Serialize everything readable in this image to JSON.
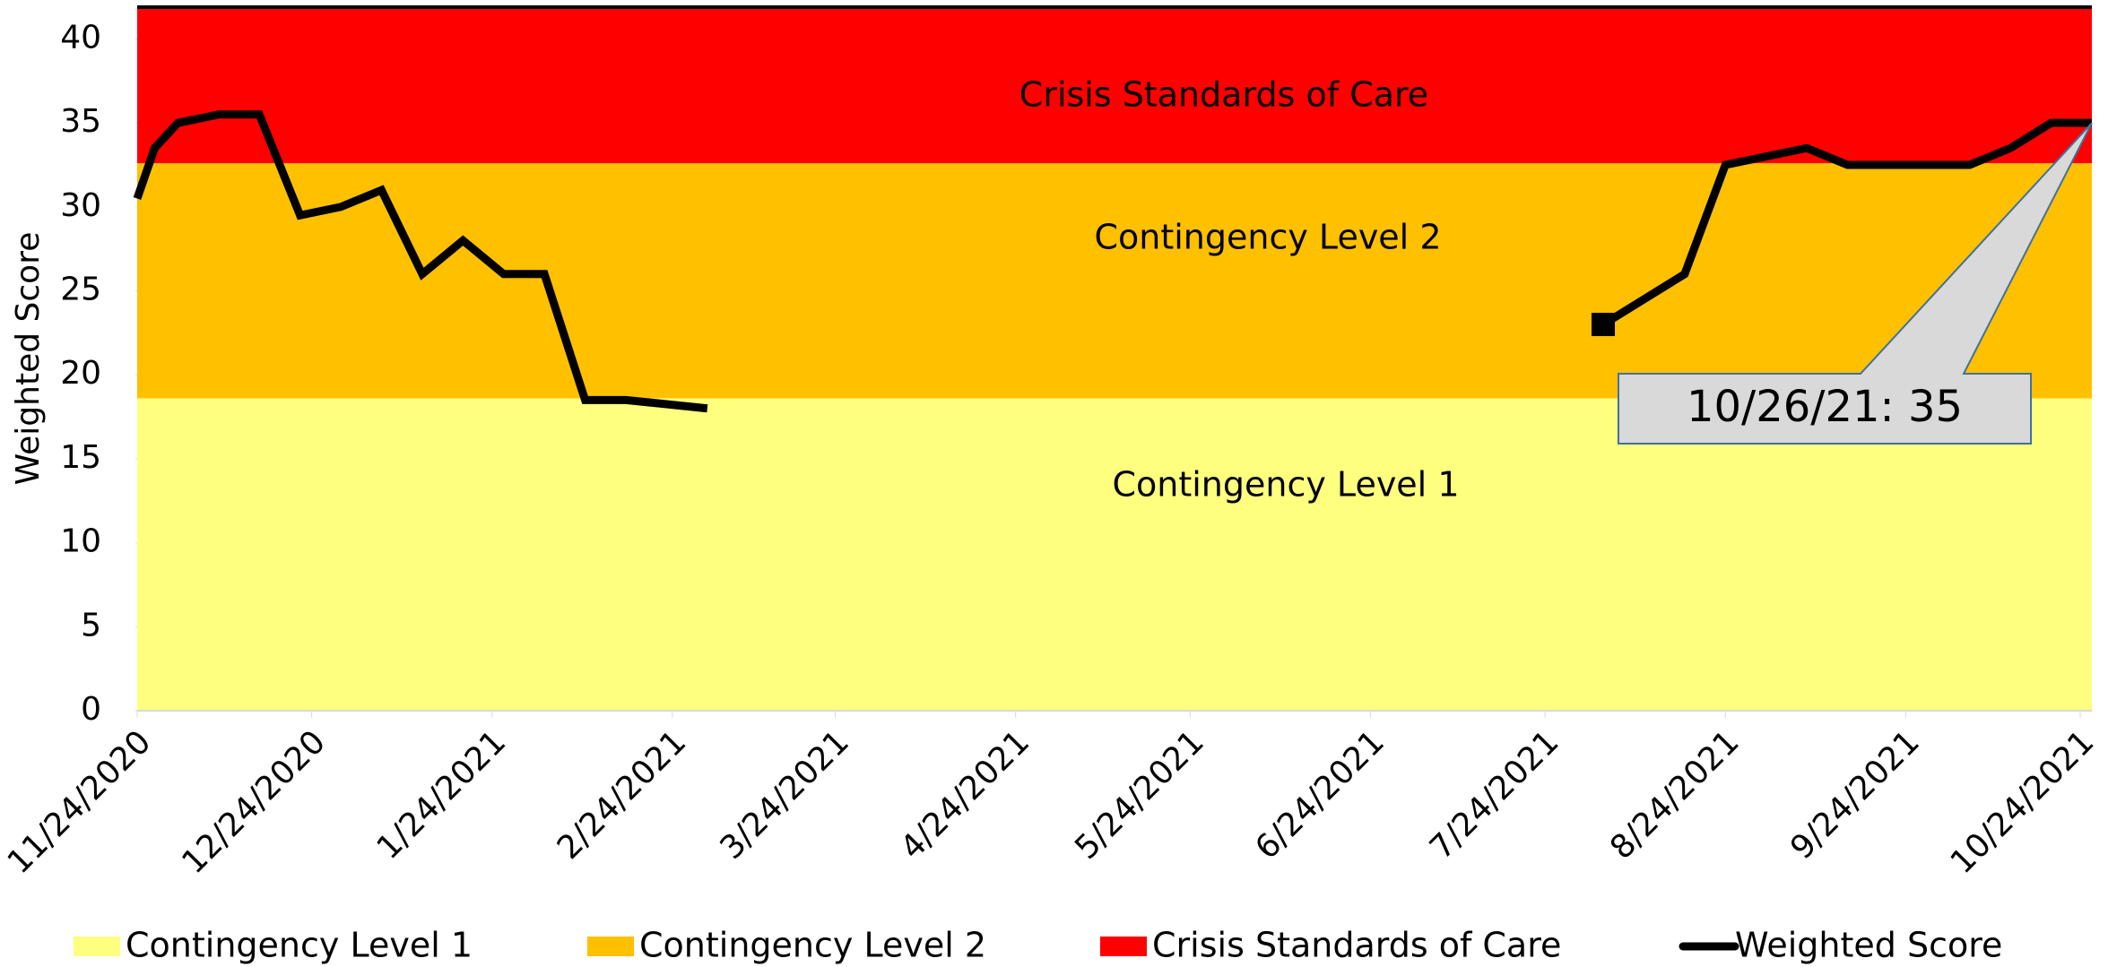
{
  "chart_data": {
    "type": "line",
    "ylabel": "Weighted Score",
    "xlim": [
      "11/24/2020",
      "10/26/2021"
    ],
    "xticks": [
      "11/24/2020",
      "12/24/2020",
      "1/24/2021",
      "2/24/2021",
      "3/24/2021",
      "4/24/2021",
      "5/24/2021",
      "6/24/2021",
      "7/24/2021",
      "8/24/2021",
      "9/24/2021",
      "10/24/2021"
    ],
    "ylim": [
      0,
      42
    ],
    "yticks": [
      0,
      5,
      10,
      15,
      20,
      25,
      30,
      35,
      40
    ],
    "bands": [
      {
        "name": "Contingency Level 1",
        "color": "#ffff7f",
        "value": 18.6
      },
      {
        "name": "Contingency Level 2",
        "color": "#ffc000",
        "value": 14
      },
      {
        "name": "Crisis Standards of Care",
        "color": "#ff0000",
        "value": 9.4
      }
    ],
    "x": [
      "11/24/2020",
      "11/27/2020",
      "12/1/2020",
      "12/8/2020",
      "12/15/2020",
      "12/22/2020",
      "12/29/2020",
      "1/5/2021",
      "1/12/2021",
      "1/19/2021",
      "1/26/2021",
      "2/2/2021",
      "2/9/2021",
      "2/16/2021",
      "2/23/2021",
      "3/2/2021",
      "3/9/2021",
      "8/3/2021",
      "8/10/2021",
      "8/17/2021",
      "8/24/2021",
      "8/31/2021",
      "9/7/2021",
      "9/14/2021",
      "9/21/2021",
      "9/28/2021",
      "10/5/2021",
      "10/12/2021",
      "10/19/2021",
      "10/26/2021"
    ],
    "series": [
      {
        "name": "Weighted Score",
        "color": "#000000",
        "values": [
          30.5,
          33.5,
          35,
          35.5,
          35.5,
          29.5,
          30,
          31,
          26,
          28,
          26,
          26,
          18.5,
          18.5,
          18.25,
          18,
          null,
          23,
          24.5,
          26,
          32.5,
          33,
          33.5,
          32.5,
          32.5,
          32.5,
          32.5,
          33.5,
          35,
          35
        ]
      }
    ],
    "annotation": "10/26/21: 35"
  }
}
